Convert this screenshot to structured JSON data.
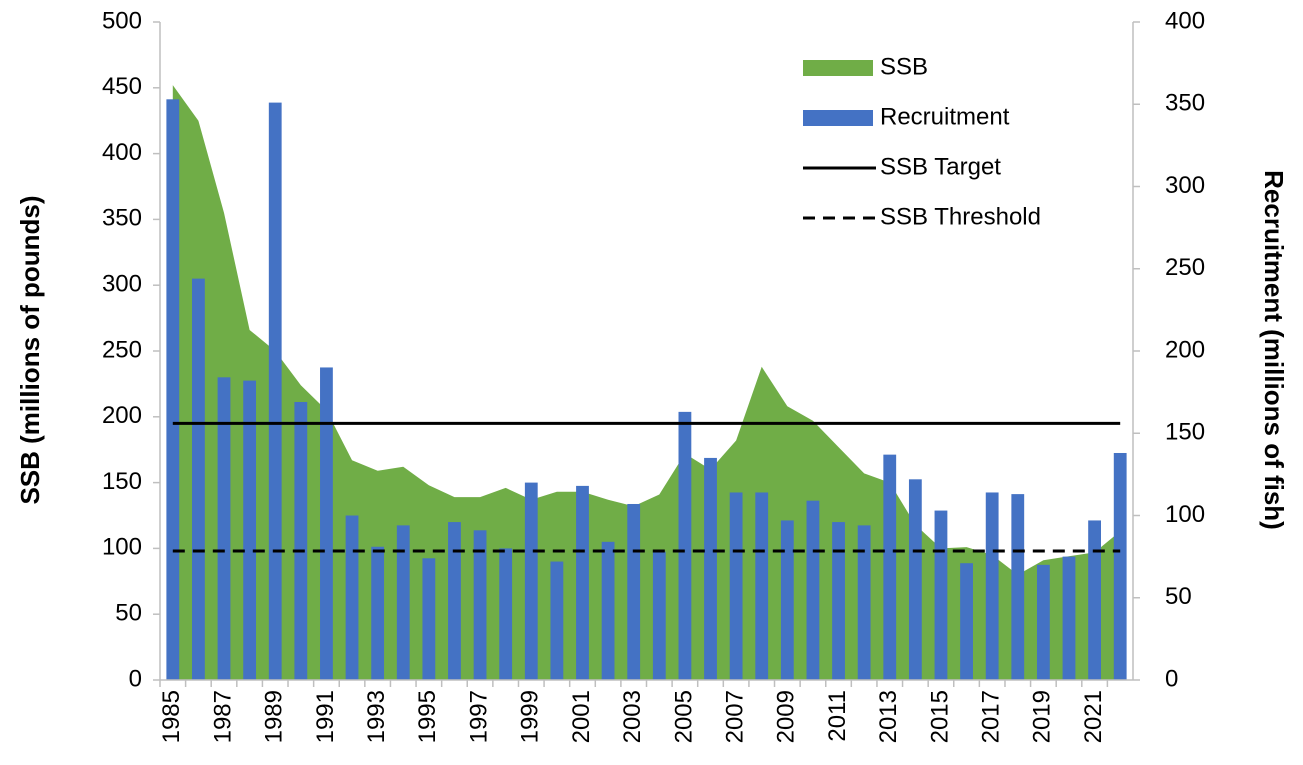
{
  "chart_data": {
    "type": "bar-area",
    "categories": [
      "1985",
      null,
      "1987",
      null,
      "1989",
      null,
      "1991",
      null,
      "1993",
      null,
      "1995",
      null,
      "1997",
      null,
      "1999",
      null,
      "2001",
      null,
      "2003",
      null,
      "2005",
      null,
      "2007",
      null,
      "2009",
      null,
      "2011",
      null,
      "2013",
      null,
      "2015",
      null,
      "2017",
      null,
      "2019",
      null,
      "2021",
      null
    ],
    "ylabel": "SSB (millions of pounds)",
    "y2label": "Recruitment (millions of fish)",
    "ylim": [
      0,
      500
    ],
    "yticks": [
      0,
      50,
      100,
      150,
      200,
      250,
      300,
      350,
      400,
      450,
      500
    ],
    "y2lim": [
      0,
      400
    ],
    "y2ticks": [
      0,
      50,
      100,
      150,
      200,
      250,
      300,
      350,
      400
    ],
    "series": [
      {
        "name": "SSB",
        "kind": "area",
        "color": "#70ad47",
        "values": [
          452,
          425,
          355,
          266,
          250,
          224,
          205,
          167,
          159,
          162,
          148,
          139,
          139,
          146,
          137,
          143,
          143,
          137,
          132,
          141,
          172,
          160,
          182,
          238,
          208,
          197,
          177,
          157,
          150,
          118,
          100,
          101,
          95,
          80,
          91,
          94,
          97,
          113
        ]
      },
      {
        "name": "Recruitment",
        "kind": "bar",
        "axis": "y2",
        "color": "#4472c4",
        "values": [
          353,
          244,
          184,
          182,
          351,
          169,
          190,
          100,
          81,
          94,
          74,
          96,
          91,
          80,
          120,
          72,
          118,
          84,
          107,
          78,
          163,
          135,
          114,
          114,
          97,
          109,
          96,
          94,
          137,
          122,
          103,
          71,
          114,
          113,
          70,
          75,
          97,
          138
        ]
      }
    ],
    "lines": [
      {
        "name": "SSB Target",
        "value": 195,
        "color": "#000000",
        "dashed": false
      },
      {
        "name": "SSB Threshold",
        "value": 98,
        "color": "#000000",
        "dashed": true
      }
    ]
  }
}
